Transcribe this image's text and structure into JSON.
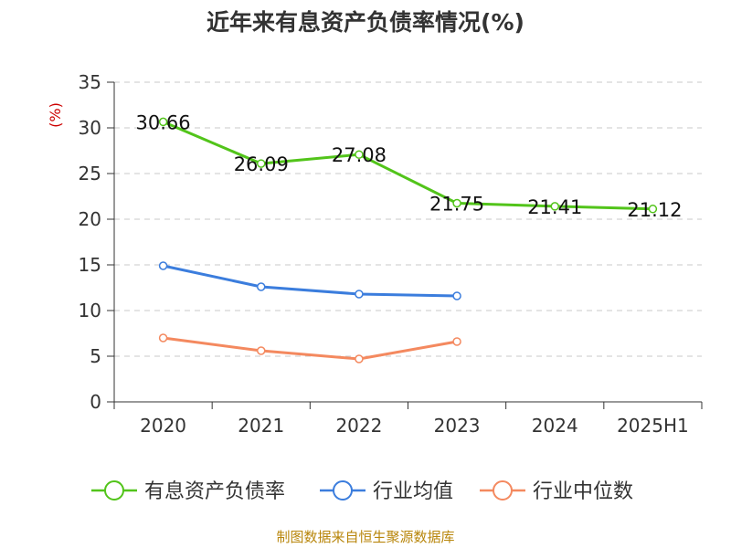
{
  "chart_data": {
    "type": "line",
    "title": "近年来有息资产负债率情况(%)",
    "ylabel": "(%)",
    "ylim": [
      0,
      35
    ],
    "yticks": [
      "0",
      "5",
      "10",
      "15",
      "20",
      "25",
      "30",
      "35"
    ],
    "categories": [
      "2020",
      "2021",
      "2022",
      "2023",
      "2024",
      "2025H1"
    ],
    "grid": true,
    "legend_position": "bottom",
    "series": [
      {
        "name": "有息资产负债率",
        "color": "#52c41a",
        "values": [
          30.66,
          26.09,
          27.08,
          21.75,
          21.41,
          21.12
        ],
        "labels": [
          "30.66",
          "26.09",
          "27.08",
          "21.75",
          "21.41",
          "21.12"
        ]
      },
      {
        "name": "行业均值",
        "color": "#3b7ddd",
        "values": [
          14.9,
          12.6,
          11.8,
          11.6,
          null,
          null
        ]
      },
      {
        "name": "行业中位数",
        "color": "#f4895f",
        "values": [
          7.0,
          5.6,
          4.7,
          6.6,
          null,
          null
        ]
      }
    ],
    "source": "制图数据来自恒生聚源数据库"
  }
}
